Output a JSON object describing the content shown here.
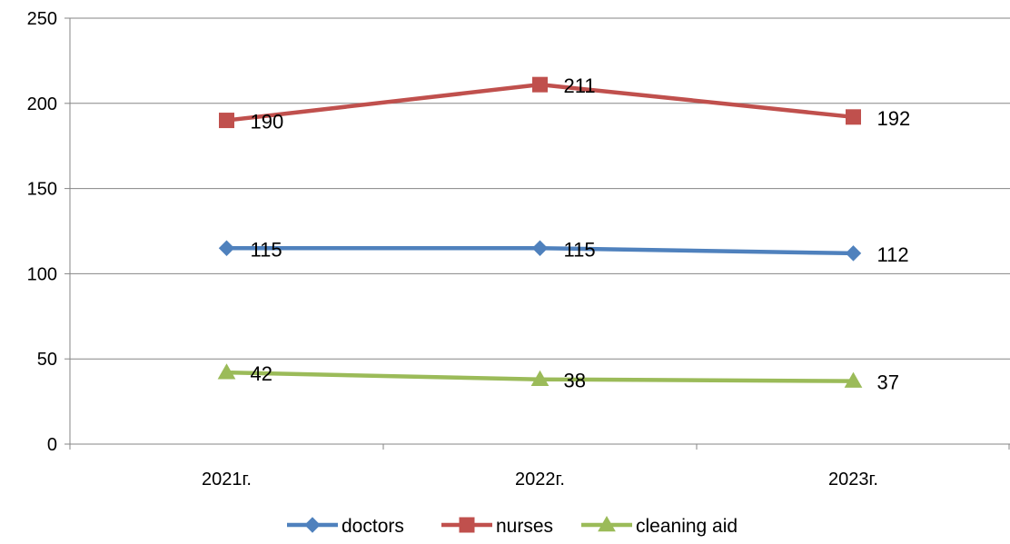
{
  "chart_data": {
    "type": "line",
    "title": "",
    "xlabel": "",
    "ylabel": "",
    "categories": [
      "2021г.",
      "2022г.",
      "2023г."
    ],
    "ylim": [
      0,
      250
    ],
    "yticks": [
      "0",
      "50",
      "100",
      "150",
      "200",
      "250"
    ],
    "grid": "horizontal",
    "legend_position": "bottom",
    "series": [
      {
        "name": "doctors",
        "values": [
          115,
          115,
          112
        ],
        "color": "#4F81BD",
        "marker": "diamond"
      },
      {
        "name": "nurses",
        "values": [
          190,
          211,
          192
        ],
        "color": "#C0504D",
        "marker": "square"
      },
      {
        "name": "cleaning aid",
        "values": [
          42,
          38,
          37
        ],
        "color": "#9BBB59",
        "marker": "triangle"
      }
    ]
  }
}
